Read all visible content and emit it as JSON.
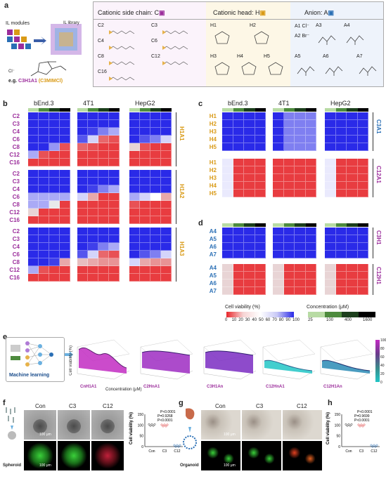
{
  "panel_a": {
    "letter": "a",
    "il_modules": "IL modules",
    "il_library": "IL library",
    "example_prefix": "e.g. ",
    "example_name": "C3H1A1",
    "example_paren": "(C3MIMCl)",
    "cl_label": "Cl⁻",
    "chain_title": "Cationic side chain: C",
    "head_title": "Cationic head: H",
    "anion_title": "Anion: A",
    "chains": [
      "C2",
      "C3",
      "C4",
      "C6",
      "C8",
      "C12",
      "C16"
    ],
    "heads": [
      "H1",
      "H2",
      "H3",
      "H4",
      "H5"
    ],
    "anions": [
      "A1 Cl⁻",
      "A2 Br⁻",
      "A3",
      "A4",
      "A5",
      "A6",
      "A7"
    ],
    "colors": {
      "chain": "#9b2d9b",
      "head": "#d99a16",
      "anion": "#2a6fb5"
    }
  },
  "panel_b": {
    "letter": "b",
    "cells": [
      "bEnd.3",
      "4T1",
      "HepG2"
    ],
    "groups": [
      {
        "side": "H1A1",
        "rows": [
          "C2",
          "C3",
          "C4",
          "C6",
          "C8",
          "C12",
          "C16"
        ]
      },
      {
        "side": "H1A2",
        "rows": [
          "C2",
          "C3",
          "C4",
          "C6",
          "C8",
          "C12",
          "C16"
        ]
      },
      {
        "side": "H1A3",
        "rows": [
          "C2",
          "C3",
          "C4",
          "C6",
          "C8",
          "C12",
          "C16"
        ]
      }
    ]
  },
  "panel_c": {
    "letter": "c",
    "cells": [
      "bEnd.3",
      "4T1",
      "HepG2"
    ],
    "groups": [
      {
        "side": "C3A1",
        "rows": [
          "H1",
          "H2",
          "H3",
          "H4",
          "H5"
        ]
      },
      {
        "side": "C12A1",
        "rows": [
          "H1",
          "H2",
          "H3",
          "H4",
          "H5"
        ]
      }
    ]
  },
  "panel_d": {
    "letter": "d",
    "groups": [
      {
        "side": "C3H1",
        "rows": [
          "A4",
          "A5",
          "A6",
          "A7"
        ]
      },
      {
        "side": "C12H1",
        "rows": [
          "A4",
          "A5",
          "A6",
          "A7"
        ]
      }
    ],
    "viability_title": "Cell viability (%)",
    "viability_ticks": [
      "0",
      "10",
      "20",
      "30",
      "40",
      "50",
      "60",
      "70",
      "80",
      "90",
      "100"
    ],
    "conc_title": "Concentration (μM)",
    "conc_ticks": [
      "25",
      "100",
      "400",
      "1600"
    ]
  },
  "panel_e": {
    "letter": "e",
    "ml_label": "Machine learning",
    "surfaces": [
      "CnH1A1",
      "C2HnA1",
      "C3H1An",
      "C12HnA1",
      "C12H1An"
    ],
    "zlabel": "Cell viability (%)",
    "xlabel": "Concentration (μM)",
    "colorbar_ticks": [
      "100",
      "80",
      "60",
      "40",
      "20",
      "0"
    ],
    "colorbar_title": "Cell viability (%)"
  },
  "panel_f": {
    "letter": "f",
    "cols": [
      "Con",
      "C3",
      "C12"
    ],
    "scale": "100 μm",
    "model": "Spheroid",
    "ylabel": "Cell viability (%)",
    "pvals": [
      "P<0.0001",
      "P=0.9268",
      "P<0.0001"
    ],
    "xcats": [
      "Con",
      "C3",
      "C12"
    ]
  },
  "panel_g": {
    "letter": "g",
    "cols": [
      "Con",
      "C3",
      "C12"
    ],
    "scale": "100 μm",
    "model": "Organoid"
  },
  "panel_h": {
    "letter": "h",
    "ylabel": "Cell viability (%)",
    "pvals": [
      "P<0.0001",
      "P=0.9699",
      "P<0.0001"
    ],
    "xcats": [
      "Con",
      "C3",
      "C12"
    ]
  }
}
